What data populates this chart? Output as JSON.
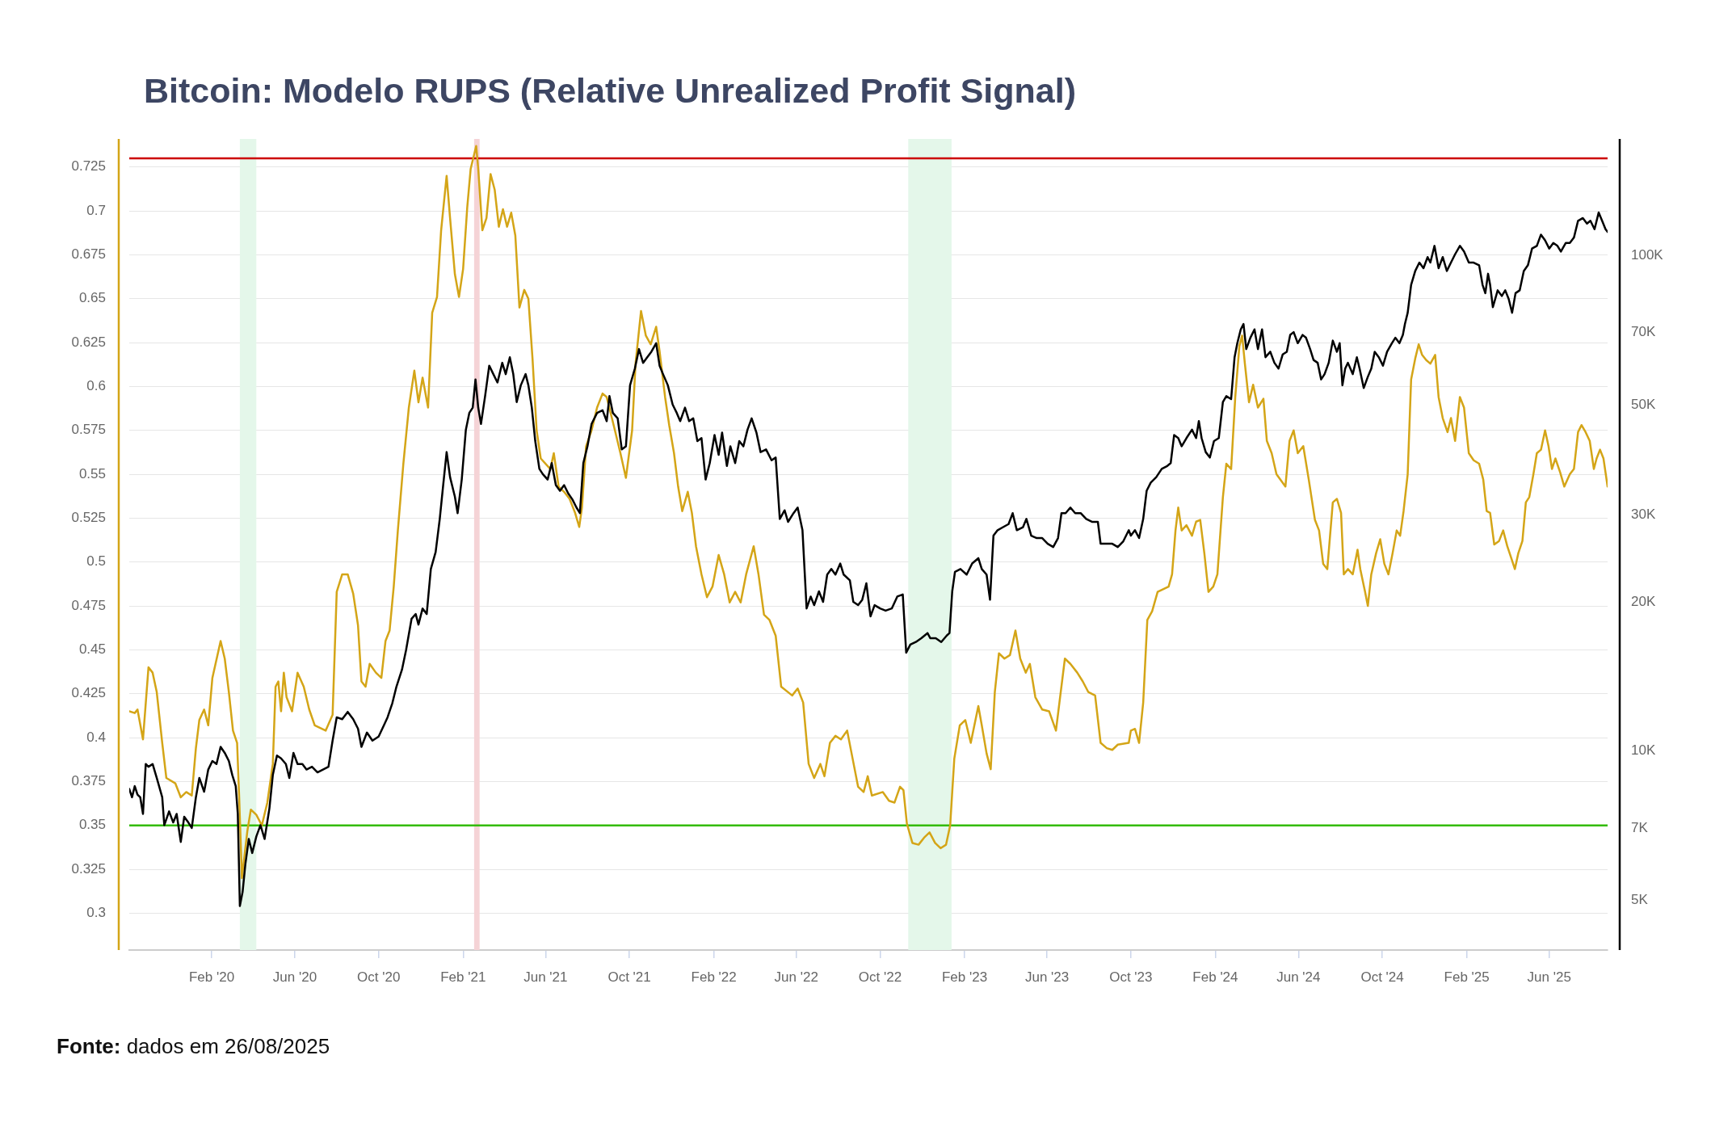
{
  "chart_data": {
    "type": "line",
    "title": "Bitcoin: Modelo RUPS (Relative Unrealized Profit Signal)",
    "annotations": [
      "Fonte: dados em 26/08/2025"
    ],
    "xlim": [
      "2019-10-04",
      "2025-08-25"
    ],
    "xticks": [
      {
        "value": "2020-02-01",
        "label": "Feb '20"
      },
      {
        "value": "2020-06-01",
        "label": "Jun '20"
      },
      {
        "value": "2020-10-01",
        "label": "Oct '20"
      },
      {
        "value": "2021-02-01",
        "label": "Feb '21"
      },
      {
        "value": "2021-06-01",
        "label": "Jun '21"
      },
      {
        "value": "2021-10-01",
        "label": "Oct '21"
      },
      {
        "value": "2022-02-01",
        "label": "Feb '22"
      },
      {
        "value": "2022-06-01",
        "label": "Jun '22"
      },
      {
        "value": "2022-10-01",
        "label": "Oct '22"
      },
      {
        "value": "2023-02-01",
        "label": "Feb '23"
      },
      {
        "value": "2023-06-01",
        "label": "Jun '23"
      },
      {
        "value": "2023-10-01",
        "label": "Oct '23"
      },
      {
        "value": "2024-02-01",
        "label": "Feb '24"
      },
      {
        "value": "2024-06-01",
        "label": "Jun '24"
      },
      {
        "value": "2024-10-01",
        "label": "Oct '24"
      },
      {
        "value": "2025-02-01",
        "label": "Feb '25"
      },
      {
        "value": "2025-06-01",
        "label": "Jun '25"
      }
    ],
    "ylim": [
      0.279,
      0.741
    ],
    "yticks": [
      0.3,
      0.325,
      0.35,
      0.375,
      0.4,
      0.425,
      0.45,
      0.475,
      0.5,
      0.525,
      0.55,
      0.575,
      0.6,
      0.625,
      0.65,
      0.675,
      0.7,
      0.725
    ],
    "y2lim": [
      3970,
      171700
    ],
    "y2ticks": [
      {
        "value": 5000,
        "label": "5K"
      },
      {
        "value": 7000,
        "label": "7K"
      },
      {
        "value": 10000,
        "label": "10K"
      },
      {
        "value": 20000,
        "label": "20K"
      },
      {
        "value": 30000,
        "label": "30K"
      },
      {
        "value": 50000,
        "label": "50K"
      },
      {
        "value": 70000,
        "label": "70K"
      },
      {
        "value": 100000,
        "label": "100K"
      }
    ],
    "log": "y2",
    "grid": "y",
    "ref_lines": [
      {
        "axis": "y",
        "value": 0.73,
        "color": "#cc0000"
      },
      {
        "axis": "y",
        "value": 0.35,
        "color": "#33bb00"
      }
    ],
    "bands": [
      {
        "axis": "x",
        "from": "2020-03-13",
        "to": "2020-04-06",
        "color": "#e4f7ea"
      },
      {
        "axis": "x",
        "from": "2021-02-17",
        "to": "2021-02-25",
        "color": "#f5d3d6"
      },
      {
        "axis": "x",
        "from": "2022-11-11",
        "to": "2023-01-13",
        "color": "#e4f7ea"
      }
    ],
    "series": [
      {
        "color": "#d4a517",
        "x": [
          "2019-10-04",
          "2019-10-12",
          "2019-10-16",
          "2019-10-24",
          "2019-11-01",
          "2019-11-07",
          "2019-11-13",
          "2019-11-21",
          "2019-11-27",
          "2019-12-10",
          "2019-12-18",
          "2019-12-26",
          "2020-01-03",
          "2020-01-09",
          "2020-01-14",
          "2020-01-21",
          "2020-01-27",
          "2020-02-02",
          "2020-02-14",
          "2020-02-20",
          "2020-02-26",
          "2020-03-03",
          "2020-03-09",
          "2020-03-12",
          "2020-03-16",
          "2020-03-24",
          "2020-03-29",
          "2020-04-06",
          "2020-04-14",
          "2020-04-22",
          "2020-04-30",
          "2020-05-04",
          "2020-05-08",
          "2020-05-12",
          "2020-05-16",
          "2020-05-20",
          "2020-05-28",
          "2020-06-05",
          "2020-06-14",
          "2020-06-22",
          "2020-06-30",
          "2020-07-16",
          "2020-07-26",
          "2020-08-01",
          "2020-08-09",
          "2020-08-17",
          "2020-08-25",
          "2020-09-01",
          "2020-09-06",
          "2020-09-12",
          "2020-09-18",
          "2020-09-27",
          "2020-10-05",
          "2020-10-11",
          "2020-10-17",
          "2020-10-23",
          "2020-10-29",
          "2020-11-06",
          "2020-11-14",
          "2020-11-22",
          "2020-11-28",
          "2020-12-04",
          "2020-12-12",
          "2020-12-18",
          "2020-12-25",
          "2020-12-31",
          "2021-01-08",
          "2021-01-13",
          "2021-01-20",
          "2021-01-26",
          "2021-02-01",
          "2021-02-07",
          "2021-02-12",
          "2021-02-20",
          "2021-02-23",
          "2021-03-01",
          "2021-03-07",
          "2021-03-13",
          "2021-03-19",
          "2021-03-25",
          "2021-03-31",
          "2021-04-06",
          "2021-04-12",
          "2021-04-18",
          "2021-04-24",
          "2021-05-01",
          "2021-05-07",
          "2021-05-13",
          "2021-05-19",
          "2021-05-25",
          "2021-06-08",
          "2021-06-13",
          "2021-06-20",
          "2021-06-28",
          "2021-07-06",
          "2021-07-14",
          "2021-07-20",
          "2021-07-24",
          "2021-07-30",
          "2021-08-07",
          "2021-08-15",
          "2021-08-23",
          "2021-08-29",
          "2021-09-10",
          "2021-09-18",
          "2021-09-26",
          "2021-10-05",
          "2021-10-10",
          "2021-10-18",
          "2021-10-25",
          "2021-11-01",
          "2021-11-09",
          "2021-11-14",
          "2021-11-22",
          "2021-11-28",
          "2021-12-05",
          "2021-12-11",
          "2021-12-17",
          "2021-12-25",
          "2021-12-31",
          "2022-01-06",
          "2022-01-14",
          "2022-01-22",
          "2022-01-30",
          "2022-02-08",
          "2022-02-16",
          "2022-02-24",
          "2022-03-04",
          "2022-03-12",
          "2022-03-20",
          "2022-03-31",
          "2022-04-07",
          "2022-04-15",
          "2022-04-23",
          "2022-05-02",
          "2022-05-10",
          "2022-05-26",
          "2022-06-03",
          "2022-06-11",
          "2022-06-19",
          "2022-06-27",
          "2022-07-06",
          "2022-07-12",
          "2022-07-20",
          "2022-07-28",
          "2022-08-05",
          "2022-08-14",
          "2022-08-22",
          "2022-08-30",
          "2022-09-07",
          "2022-09-13",
          "2022-09-19",
          "2022-10-05",
          "2022-10-14",
          "2022-10-22",
          "2022-10-30",
          "2022-11-04",
          "2022-11-09",
          "2022-11-17",
          "2022-11-26",
          "2022-12-04",
          "2022-12-12",
          "2022-12-20",
          "2022-12-28",
          "2023-01-05",
          "2023-01-11",
          "2023-01-17",
          "2023-01-25",
          "2023-02-02",
          "2023-02-10",
          "2023-02-21",
          "2023-02-26",
          "2023-03-05",
          "2023-03-11",
          "2023-03-17",
          "2023-03-23",
          "2023-03-31",
          "2023-04-08",
          "2023-04-16",
          "2023-04-23",
          "2023-05-01",
          "2023-05-07",
          "2023-05-15",
          "2023-05-25",
          "2023-06-04",
          "2023-06-14",
          "2023-06-20",
          "2023-06-27",
          "2023-07-05",
          "2023-07-15",
          "2023-07-23",
          "2023-07-31",
          "2023-08-10",
          "2023-08-18",
          "2023-08-27",
          "2023-09-04",
          "2023-09-12",
          "2023-09-28",
          "2023-10-01",
          "2023-10-07",
          "2023-10-13",
          "2023-10-19",
          "2023-10-25",
          "2023-11-01",
          "2023-11-09",
          "2023-11-25",
          "2023-11-30",
          "2023-12-05",
          "2023-12-09",
          "2023-12-14",
          "2023-12-21",
          "2023-12-29",
          "2024-01-04",
          "2024-01-10",
          "2024-01-16",
          "2024-01-22",
          "2024-01-29",
          "2024-02-04",
          "2024-02-12",
          "2024-02-17",
          "2024-02-24",
          "2024-03-01",
          "2024-03-07",
          "2024-03-11",
          "2024-03-15",
          "2024-03-21",
          "2024-03-27",
          "2024-04-03",
          "2024-04-11",
          "2024-04-16",
          "2024-04-23",
          "2024-04-30",
          "2024-05-13",
          "2024-05-19",
          "2024-05-25",
          "2024-05-31",
          "2024-06-08",
          "2024-06-16",
          "2024-06-25",
          "2024-07-01",
          "2024-07-07",
          "2024-07-13",
          "2024-07-21",
          "2024-07-27",
          "2024-08-02",
          "2024-08-06",
          "2024-08-12",
          "2024-08-19",
          "2024-08-26",
          "2024-08-30",
          "2024-09-06",
          "2024-09-10",
          "2024-09-15",
          "2024-09-22",
          "2024-09-28",
          "2024-10-04",
          "2024-10-10",
          "2024-10-16",
          "2024-10-22",
          "2024-10-27",
          "2024-11-01",
          "2024-11-07",
          "2024-11-12",
          "2024-11-18",
          "2024-11-23",
          "2024-11-28",
          "2024-12-04",
          "2024-12-10",
          "2024-12-17",
          "2024-12-22",
          "2024-12-28",
          "2025-01-04",
          "2025-01-09",
          "2025-01-15",
          "2025-01-22",
          "2025-01-28",
          "2025-02-04",
          "2025-02-11",
          "2025-02-19",
          "2025-02-25",
          "2025-03-02",
          "2025-03-07",
          "2025-03-13",
          "2025-03-20",
          "2025-03-26",
          "2025-04-01",
          "2025-04-07",
          "2025-04-12",
          "2025-04-17",
          "2025-04-23",
          "2025-04-28",
          "2025-05-03",
          "2025-05-09",
          "2025-05-14",
          "2025-05-20",
          "2025-05-26",
          "2025-05-31",
          "2025-06-05",
          "2025-06-10",
          "2025-06-17",
          "2025-06-23",
          "2025-07-01",
          "2025-07-07",
          "2025-07-13",
          "2025-07-18",
          "2025-07-24",
          "2025-07-30",
          "2025-08-05",
          "2025-08-09",
          "2025-08-14",
          "2025-08-19",
          "2025-08-25"
        ],
        "values": [
          0.415,
          0.414,
          0.416,
          0.399,
          0.44,
          0.437,
          0.426,
          0.397,
          0.377,
          0.374,
          0.366,
          0.369,
          0.367,
          0.394,
          0.41,
          0.416,
          0.407,
          0.434,
          0.455,
          0.445,
          0.426,
          0.404,
          0.397,
          0.366,
          0.32,
          0.347,
          0.359,
          0.356,
          0.35,
          0.363,
          0.385,
          0.429,
          0.432,
          0.415,
          0.437,
          0.423,
          0.415,
          0.437,
          0.429,
          0.416,
          0.407,
          0.404,
          0.413,
          0.483,
          0.493,
          0.493,
          0.482,
          0.464,
          0.432,
          0.429,
          0.442,
          0.437,
          0.434,
          0.455,
          0.461,
          0.486,
          0.518,
          0.556,
          0.588,
          0.609,
          0.591,
          0.605,
          0.588,
          0.642,
          0.651,
          0.689,
          0.72,
          0.696,
          0.664,
          0.651,
          0.667,
          0.702,
          0.724,
          0.737,
          0.724,
          0.689,
          0.696,
          0.721,
          0.712,
          0.691,
          0.701,
          0.691,
          0.699,
          0.686,
          0.645,
          0.655,
          0.65,
          0.616,
          0.575,
          0.559,
          0.553,
          0.562,
          0.543,
          0.54,
          0.536,
          0.528,
          0.52,
          0.531,
          0.566,
          0.575,
          0.588,
          0.596,
          0.594,
          0.575,
          0.562,
          0.548,
          0.575,
          0.613,
          0.643,
          0.629,
          0.624,
          0.634,
          0.62,
          0.594,
          0.578,
          0.562,
          0.543,
          0.529,
          0.54,
          0.528,
          0.509,
          0.493,
          0.48,
          0.486,
          0.504,
          0.493,
          0.477,
          0.483,
          0.477,
          0.493,
          0.509,
          0.493,
          0.47,
          0.467,
          0.458,
          0.429,
          0.424,
          0.428,
          0.42,
          0.385,
          0.377,
          0.385,
          0.378,
          0.397,
          0.401,
          0.399,
          0.404,
          0.388,
          0.372,
          0.369,
          0.378,
          0.367,
          0.369,
          0.364,
          0.363,
          0.372,
          0.37,
          0.351,
          0.34,
          0.339,
          0.343,
          0.346,
          0.34,
          0.337,
          0.339,
          0.35,
          0.388,
          0.407,
          0.41,
          0.397,
          0.418,
          0.407,
          0.391,
          0.382,
          0.426,
          0.448,
          0.445,
          0.447,
          0.461,
          0.445,
          0.437,
          0.442,
          0.423,
          0.416,
          0.415,
          0.404,
          0.423,
          0.445,
          0.442,
          0.437,
          0.432,
          0.426,
          0.424,
          0.397,
          0.394,
          0.393,
          0.396,
          0.397,
          0.404,
          0.405,
          0.397,
          0.42,
          0.467,
          0.472,
          0.483,
          0.486,
          0.493,
          0.518,
          0.531,
          0.518,
          0.521,
          0.515,
          0.523,
          0.524,
          0.505,
          0.483,
          0.486,
          0.493,
          0.537,
          0.556,
          0.553,
          0.594,
          0.623,
          0.629,
          0.613,
          0.591,
          0.601,
          0.588,
          0.593,
          0.569,
          0.562,
          0.55,
          0.543,
          0.569,
          0.575,
          0.562,
          0.566,
          0.547,
          0.524,
          0.518,
          0.499,
          0.496,
          0.534,
          0.536,
          0.528,
          0.493,
          0.496,
          0.493,
          0.507,
          0.496,
          0.483,
          0.475,
          0.493,
          0.505,
          0.513,
          0.499,
          0.493,
          0.505,
          0.518,
          0.515,
          0.529,
          0.55,
          0.604,
          0.616,
          0.624,
          0.618,
          0.615,
          0.613,
          0.618,
          0.594,
          0.582,
          0.574,
          0.582,
          0.569,
          0.594,
          0.588,
          0.562,
          0.558,
          0.556,
          0.547,
          0.529,
          0.528,
          0.51,
          0.512,
          0.518,
          0.509,
          0.502,
          0.496,
          0.505,
          0.512,
          0.534,
          0.537,
          0.55,
          0.562,
          0.564,
          0.575,
          0.566,
          0.553,
          0.559,
          0.551,
          0.543,
          0.55,
          0.553,
          0.574,
          0.578,
          0.574,
          0.569,
          0.553,
          0.559,
          0.564,
          0.559,
          0.543
        ]
      },
      {
        "color": "#000000",
        "axis": "y2",
        "x": [
          "2019-10-04",
          "2019-10-08",
          "2019-10-12",
          "2019-10-16",
          "2019-10-20",
          "2019-10-24",
          "2019-10-28",
          "2019-11-01",
          "2019-11-07",
          "2019-11-13",
          "2019-11-21",
          "2019-11-24",
          "2019-12-01",
          "2019-12-07",
          "2019-12-12",
          "2019-12-18",
          "2019-12-23",
          "2019-12-29",
          "2020-01-03",
          "2020-01-09",
          "2020-01-14",
          "2020-01-21",
          "2020-01-27",
          "2020-02-02",
          "2020-02-08",
          "2020-02-14",
          "2020-02-20",
          "2020-02-26",
          "2020-03-02",
          "2020-03-07",
          "2020-03-10",
          "2020-03-13",
          "2020-03-17",
          "2020-03-21",
          "2020-03-26",
          "2020-03-31",
          "2020-04-06",
          "2020-04-12",
          "2020-04-18",
          "2020-04-25",
          "2020-04-30",
          "2020-05-06",
          "2020-05-12",
          "2020-05-19",
          "2020-05-24",
          "2020-05-30",
          "2020-06-05",
          "2020-06-12",
          "2020-06-18",
          "2020-06-26",
          "2020-07-04",
          "2020-07-12",
          "2020-07-20",
          "2020-07-26",
          "2020-08-01",
          "2020-08-09",
          "2020-08-17",
          "2020-08-25",
          "2020-09-01",
          "2020-09-06",
          "2020-09-14",
          "2020-09-22",
          "2020-10-01",
          "2020-10-09",
          "2020-10-14",
          "2020-10-21",
          "2020-10-27",
          "2020-11-04",
          "2020-11-10",
          "2020-11-18",
          "2020-11-24",
          "2020-11-28",
          "2020-12-04",
          "2020-12-10",
          "2020-12-16",
          "2020-12-23",
          "2020-12-29",
          "2021-01-03",
          "2021-01-08",
          "2021-01-13",
          "2021-01-20",
          "2021-01-24",
          "2021-01-30",
          "2021-02-05",
          "2021-02-10",
          "2021-02-15",
          "2021-02-19",
          "2021-02-23",
          "2021-02-27",
          "2021-03-05",
          "2021-03-11",
          "2021-03-17",
          "2021-03-23",
          "2021-03-30",
          "2021-04-04",
          "2021-04-10",
          "2021-04-15",
          "2021-04-20",
          "2021-04-26",
          "2021-05-03",
          "2021-05-07",
          "2021-05-12",
          "2021-05-17",
          "2021-05-23",
          "2021-05-28",
          "2021-06-04",
          "2021-06-10",
          "2021-06-16",
          "2021-06-22",
          "2021-06-28",
          "2021-07-04",
          "2021-07-10",
          "2021-07-16",
          "2021-07-21",
          "2021-07-26",
          "2021-08-01",
          "2021-08-07",
          "2021-08-15",
          "2021-08-23",
          "2021-08-29",
          "2021-09-02",
          "2021-09-07",
          "2021-09-14",
          "2021-09-20",
          "2021-09-26",
          "2021-10-02",
          "2021-10-09",
          "2021-10-15",
          "2021-10-21",
          "2021-10-27",
          "2021-11-02",
          "2021-11-09",
          "2021-11-14",
          "2021-11-19",
          "2021-11-26",
          "2021-12-03",
          "2021-12-09",
          "2021-12-14",
          "2021-12-21",
          "2021-12-27",
          "2022-01-02",
          "2022-01-08",
          "2022-01-14",
          "2022-01-20",
          "2022-01-26",
          "2022-02-02",
          "2022-02-08",
          "2022-02-13",
          "2022-02-20",
          "2022-02-25",
          "2022-03-04",
          "2022-03-10",
          "2022-03-16",
          "2022-03-22",
          "2022-03-28",
          "2022-04-04",
          "2022-04-10",
          "2022-04-18",
          "2022-04-26",
          "2022-05-02",
          "2022-05-08",
          "2022-05-15",
          "2022-05-20",
          "2022-05-28",
          "2022-06-03",
          "2022-06-10",
          "2022-06-16",
          "2022-06-22",
          "2022-06-27",
          "2022-07-04",
          "2022-07-10",
          "2022-07-16",
          "2022-07-22",
          "2022-07-28",
          "2022-08-04",
          "2022-08-09",
          "2022-08-18",
          "2022-08-23",
          "2022-08-30",
          "2022-09-05",
          "2022-09-11",
          "2022-09-17",
          "2022-09-23",
          "2022-10-01",
          "2022-10-09",
          "2022-10-18",
          "2022-10-26",
          "2022-11-03",
          "2022-11-08",
          "2022-11-14",
          "2022-11-22",
          "2022-11-30",
          "2022-12-09",
          "2022-12-13",
          "2022-12-21",
          "2022-12-29",
          "2023-01-06",
          "2023-01-10",
          "2023-01-14",
          "2023-01-18",
          "2023-01-26",
          "2023-02-04",
          "2023-02-12",
          "2023-02-21",
          "2023-02-26",
          "2023-03-05",
          "2023-03-10",
          "2023-03-15",
          "2023-03-21",
          "2023-03-29",
          "2023-04-06",
          "2023-04-12",
          "2023-04-18",
          "2023-04-27",
          "2023-05-02",
          "2023-05-09",
          "2023-05-17",
          "2023-05-25",
          "2023-06-02",
          "2023-06-10",
          "2023-06-17",
          "2023-06-22",
          "2023-06-28",
          "2023-07-05",
          "2023-07-12",
          "2023-07-20",
          "2023-07-28",
          "2023-08-06",
          "2023-08-14",
          "2023-08-18",
          "2023-08-27",
          "2023-09-04",
          "2023-09-12",
          "2023-09-20",
          "2023-09-28",
          "2023-10-01",
          "2023-10-07",
          "2023-10-13",
          "2023-10-19",
          "2023-10-24",
          "2023-10-30",
          "2023-11-07",
          "2023-11-15",
          "2023-11-23",
          "2023-11-28",
          "2023-12-03",
          "2023-12-09",
          "2023-12-14",
          "2023-12-21",
          "2023-12-29",
          "2024-01-04",
          "2024-01-08",
          "2024-01-12",
          "2024-01-18",
          "2024-01-24",
          "2024-01-30",
          "2024-02-06",
          "2024-02-12",
          "2024-02-17",
          "2024-02-24",
          "2024-02-29",
          "2024-03-04",
          "2024-03-09",
          "2024-03-13",
          "2024-03-17",
          "2024-03-23",
          "2024-03-29",
          "2024-04-03",
          "2024-04-09",
          "2024-04-14",
          "2024-04-21",
          "2024-04-27",
          "2024-05-03",
          "2024-05-09",
          "2024-05-15",
          "2024-05-20",
          "2024-05-25",
          "2024-05-31",
          "2024-06-07",
          "2024-06-12",
          "2024-06-18",
          "2024-06-23",
          "2024-06-29",
          "2024-07-04",
          "2024-07-09",
          "2024-07-15",
          "2024-07-21",
          "2024-07-27",
          "2024-07-31",
          "2024-08-04",
          "2024-08-08",
          "2024-08-12",
          "2024-08-19",
          "2024-08-25",
          "2024-08-29",
          "2024-09-04",
          "2024-09-10",
          "2024-09-15",
          "2024-09-20",
          "2024-09-26",
          "2024-10-02",
          "2024-10-08",
          "2024-10-15",
          "2024-10-20",
          "2024-10-26",
          "2024-10-31",
          "2024-11-03",
          "2024-11-07",
          "2024-11-12",
          "2024-11-18",
          "2024-11-24",
          "2024-11-30",
          "2024-12-06",
          "2024-12-10",
          "2024-12-16",
          "2024-12-22",
          "2024-12-28",
          "2025-01-03",
          "2025-01-09",
          "2025-01-15",
          "2025-01-22",
          "2025-01-28",
          "2025-02-04",
          "2025-02-11",
          "2025-02-19",
          "2025-02-24",
          "2025-02-28",
          "2025-03-04",
          "2025-03-07",
          "2025-03-11",
          "2025-03-18",
          "2025-03-24",
          "2025-03-29",
          "2025-04-03",
          "2025-04-08",
          "2025-04-13",
          "2025-04-19",
          "2025-04-25",
          "2025-05-01",
          "2025-05-07",
          "2025-05-14",
          "2025-05-20",
          "2025-05-26",
          "2025-06-01",
          "2025-06-07",
          "2025-06-13",
          "2025-06-18",
          "2025-06-25",
          "2025-07-01",
          "2025-07-07",
          "2025-07-13",
          "2025-07-20",
          "2025-07-26",
          "2025-07-31",
          "2025-08-06",
          "2025-08-12",
          "2025-08-17",
          "2025-08-22",
          "2025-08-25"
        ],
        "values": [
          8390,
          8070,
          8500,
          8170,
          8070,
          7470,
          9420,
          9300,
          9420,
          8830,
          8070,
          7090,
          7560,
          7180,
          7470,
          6560,
          7370,
          7180,
          7000,
          8070,
          8830,
          8280,
          9180,
          9550,
          9420,
          10200,
          9920,
          9550,
          8950,
          8500,
          7470,
          4870,
          5200,
          5910,
          6650,
          6230,
          6730,
          7090,
          6650,
          7660,
          8950,
          9800,
          9670,
          9420,
          8830,
          9920,
          9420,
          9420,
          9180,
          9300,
          9060,
          9180,
          9300,
          10500,
          11700,
          11600,
          12000,
          11600,
          11100,
          10200,
          10900,
          10500,
          10700,
          11300,
          11700,
          12500,
          13500,
          14600,
          16000,
          18500,
          18900,
          18000,
          19400,
          18900,
          23300,
          25200,
          29400,
          34400,
          40100,
          35700,
          32600,
          30200,
          35300,
          44500,
          48100,
          49300,
          56200,
          49300,
          45700,
          52000,
          59900,
          57600,
          55400,
          60700,
          57600,
          62300,
          57600,
          50600,
          54700,
          57600,
          54700,
          49300,
          42200,
          37100,
          36200,
          35300,
          38100,
          34400,
          33500,
          34400,
          33100,
          32200,
          31000,
          30200,
          38100,
          41200,
          45700,
          48100,
          48700,
          46300,
          52000,
          48100,
          46900,
          40600,
          41200,
          54700,
          59100,
          64700,
          60700,
          62300,
          63900,
          66500,
          59900,
          57600,
          54700,
          50000,
          48100,
          46300,
          49300,
          46300,
          46900,
          42200,
          42800,
          35300,
          38100,
          43400,
          39600,
          43900,
          37600,
          41200,
          38100,
          42200,
          41200,
          44500,
          46900,
          43900,
          40100,
          40600,
          38600,
          39100,
          29400,
          30600,
          29000,
          30200,
          31000,
          27900,
          19400,
          20500,
          19700,
          21000,
          20000,
          22700,
          23300,
          22700,
          23900,
          22700,
          22100,
          20000,
          19700,
          20200,
          21800,
          18700,
          19700,
          19400,
          19200,
          19400,
          20500,
          20700,
          15800,
          16400,
          16600,
          16900,
          17300,
          16900,
          16900,
          16600,
          17100,
          17300,
          21000,
          23000,
          23300,
          22700,
          23900,
          24500,
          23300,
          22700,
          20200,
          27200,
          27900,
          28300,
          28700,
          30200,
          27900,
          28300,
          29400,
          27200,
          26900,
          26900,
          26200,
          25800,
          26900,
          30200,
          30200,
          31000,
          30200,
          30200,
          29400,
          29000,
          29000,
          26200,
          26200,
          26200,
          25800,
          26500,
          27900,
          27200,
          27900,
          26900,
          29400,
          33500,
          34800,
          35700,
          37100,
          37600,
          38100,
          43400,
          42800,
          41200,
          42800,
          44500,
          42800,
          46300,
          42800,
          40100,
          39100,
          42200,
          42800,
          50600,
          52000,
          51300,
          62300,
          66500,
          70900,
          72700,
          64700,
          68200,
          70900,
          64700,
          70900,
          62300,
          63900,
          60700,
          59100,
          63100,
          63900,
          69100,
          70000,
          66500,
          69100,
          68200,
          64700,
          61500,
          60700,
          56200,
          57600,
          60700,
          67300,
          63900,
          66500,
          54700,
          59100,
          60700,
          57600,
          62300,
          59100,
          54000,
          56900,
          59100,
          63900,
          62300,
          59900,
          63900,
          66500,
          68200,
          66500,
          69100,
          72700,
          76600,
          87200,
          93000,
          96700,
          94200,
          99200,
          96700,
          104500,
          94200,
          99200,
          93000,
          96700,
          100500,
          104500,
          101800,
          96700,
          96700,
          95500,
          87200,
          83900,
          91800,
          87200,
          78600,
          85000,
          82800,
          85000,
          81700,
          76600,
          83900,
          85000,
          93000,
          95500,
          103200,
          104500,
          110100,
          107200,
          103200,
          105900,
          104500,
          101800,
          105900,
          105900,
          108600,
          117400,
          118900,
          115900,
          117400,
          112900,
          122000,
          117400,
          112900,
          111500
        ]
      }
    ]
  }
}
